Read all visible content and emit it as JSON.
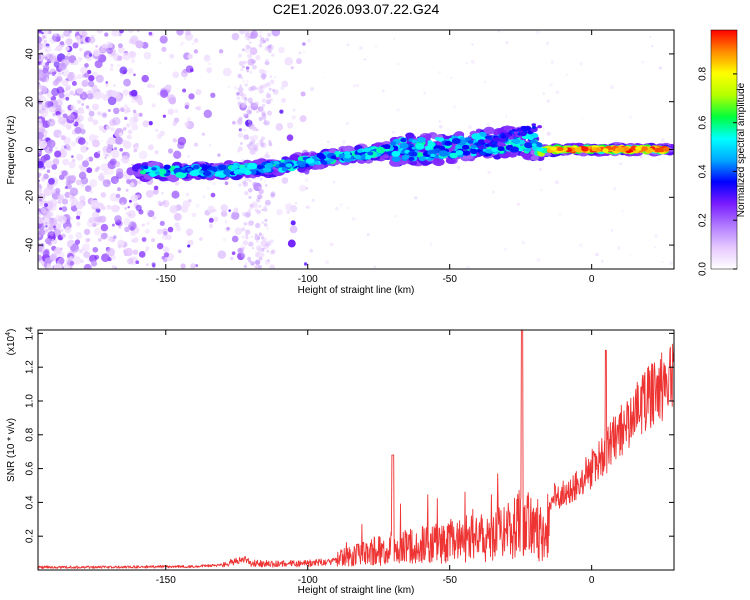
{
  "title": "C2E1.2026.093.07.22.G24",
  "chart_data": [
    {
      "type": "heatmap",
      "xlabel": "Height of straight line (km)",
      "ylabel": "Frequency (Hz)",
      "xlim": [
        -195,
        29
      ],
      "ylim": [
        -50,
        50
      ],
      "xticks": [
        -150,
        -100,
        -50,
        0
      ],
      "yticks": [
        -40,
        -20,
        0,
        20,
        40
      ],
      "ridge": {
        "x": [
          -160,
          -150,
          -140,
          -130,
          -120,
          -110,
          -100,
          -90,
          -80,
          -70,
          -60,
          -50,
          -40,
          -30,
          -25,
          -20,
          -18,
          -15,
          -10,
          0,
          10,
          20,
          28
        ],
        "y": [
          -9,
          -9,
          -9,
          -9,
          -8,
          -7,
          -5,
          -3,
          -2,
          0,
          0,
          1,
          2,
          3,
          3,
          2,
          -1,
          0,
          0,
          0,
          0,
          0,
          0
        ]
      },
      "colorbar": {
        "label": "Normalized spectral amplitude",
        "ticks": [
          "0.0",
          "0.2",
          "0.4",
          "0.6",
          "0.8"
        ],
        "colors": [
          "#ffffff",
          "#e6c8ff",
          "#b07aff",
          "#7a1cff",
          "#0000ff",
          "#00a8ff",
          "#00ffff",
          "#00ff3c",
          "#b4ff00",
          "#ffff00",
          "#ff8c00",
          "#ff0000"
        ]
      }
    },
    {
      "type": "line",
      "xlabel": "Height of straight line (km)",
      "ylabel": "SNR (10 * v/v)",
      "ylabel_scale": "(x10",
      "ylabel_exponent": "4",
      "ylabel_scale_close": ")",
      "xlim": [
        -195,
        29
      ],
      "ylim": [
        0,
        1.42
      ],
      "xticks": [
        -150,
        -100,
        -50,
        0
      ],
      "yticks": [
        "0.2",
        "0.4",
        "0.6",
        "0.8",
        "1.0",
        "1.2",
        "1.4"
      ],
      "series": [
        {
          "color": "#ee3333",
          "x": [
            -195,
            -180,
            -160,
            -140,
            -130,
            -125,
            -122,
            -120,
            -110,
            -100,
            -90,
            -85,
            -80,
            -75,
            -70,
            -60,
            -50,
            -40,
            -30,
            -25,
            -22,
            -20,
            -17,
            -15,
            -10,
            -5,
            0,
            5,
            10,
            15,
            20,
            25,
            29
          ],
          "y": [
            0.03,
            0.03,
            0.035,
            0.04,
            0.06,
            0.1,
            0.13,
            0.07,
            0.06,
            0.07,
            0.1,
            0.12,
            0.16,
            0.18,
            0.2,
            0.22,
            0.26,
            0.3,
            0.34,
            0.42,
            0.45,
            0.4,
            0.3,
            0.45,
            0.5,
            0.55,
            0.65,
            0.75,
            0.9,
            1.0,
            1.1,
            1.18,
            1.25
          ]
        }
      ]
    }
  ]
}
